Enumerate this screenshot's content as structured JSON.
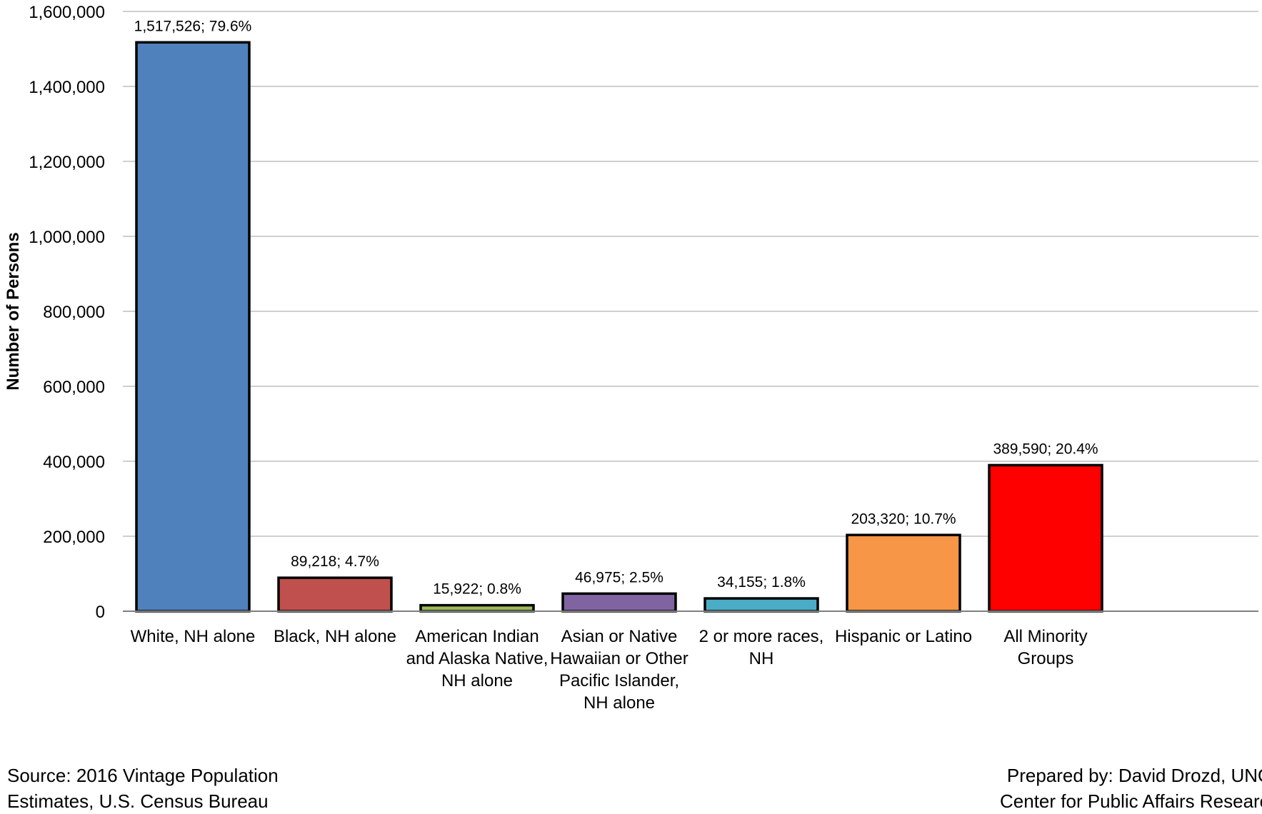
{
  "chart_data": {
    "type": "bar",
    "title": "",
    "xlabel": "",
    "ylabel": "Number of Persons",
    "ylim": [
      0,
      1600000
    ],
    "yticks": [
      0,
      200000,
      400000,
      600000,
      800000,
      1000000,
      1200000,
      1400000,
      1600000
    ],
    "ytick_labels": [
      "0",
      "200,000",
      "400,000",
      "600,000",
      "800,000",
      "1,000,000",
      "1,200,000",
      "1,400,000",
      "1,600,000"
    ],
    "grid": true,
    "legend": "none",
    "categories": [
      [
        "White, NH alone"
      ],
      [
        "Black, NH alone"
      ],
      [
        "American Indian",
        "and Alaska Native,",
        "NH alone"
      ],
      [
        "Asian or Native",
        "Hawaiian or Other",
        "Pacific Islander,",
        "NH alone"
      ],
      [
        "2 or more races,",
        "NH"
      ],
      [
        "Hispanic or Latino"
      ],
      [
        "All Minority",
        "Groups"
      ]
    ],
    "values": [
      1517526,
      89218,
      15922,
      46975,
      34155,
      203320,
      389590
    ],
    "data_labels": [
      "1,517,526; 79.6%",
      "89,218; 4.7%",
      "15,922; 0.8%",
      "46,975; 2.5%",
      "34,155; 1.8%",
      "203,320; 10.7%",
      "389,590; 20.4%"
    ],
    "percentages": [
      79.6,
      4.7,
      0.8,
      2.5,
      1.8,
      10.7,
      20.4
    ],
    "colors": [
      "#4F81BD",
      "#C0504D",
      "#9BBB59",
      "#8064A2",
      "#4BACC6",
      "#F79646",
      "#FF0000"
    ],
    "bar_outline_color": "#000000",
    "grid_color": "#BFBFBF"
  },
  "footer": {
    "source_lines": [
      "Source: 2016 Vintage Population",
      "Estimates, U.S. Census Bureau"
    ],
    "prepared_lines": [
      "Prepared by: David Drozd, UNO",
      "Center for Public Affairs Research"
    ]
  }
}
